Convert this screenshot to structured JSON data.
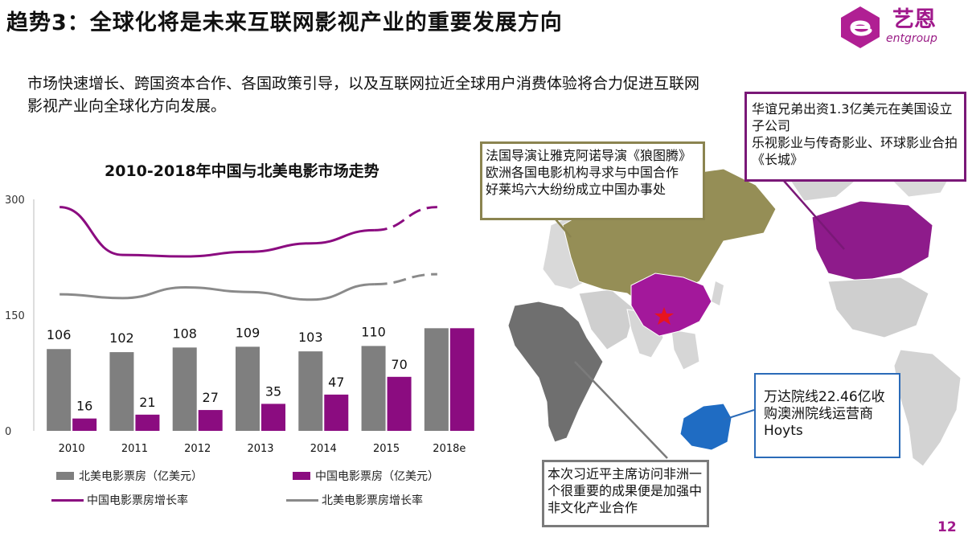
{
  "title": "趋势3：全球化将是未来互联网影视产业的重要发展方向",
  "logo": {
    "name": "艺恩",
    "sub": "entgroup"
  },
  "intro": "市场快速增长、跨国资本合作、各国政策引导，以及互联网拉近全球用户消费体验将合力促进互联网影视产业向全球化方向发展。",
  "chart_data": {
    "type": "bar",
    "title": "2010-2018年中国与北美电影市场走势",
    "categories": [
      "2010",
      "2011",
      "2012",
      "2013",
      "2014",
      "2015",
      "2018e"
    ],
    "yticks": [
      "300",
      "150",
      "0"
    ],
    "ylim": [
      0,
      300
    ],
    "series": [
      {
        "name": "北美电影票房（亿美元）",
        "kind": "bar",
        "color": "#7f7f7f",
        "values": [
          106,
          102,
          108,
          109,
          103,
          110,
          133
        ],
        "labels": [
          "106",
          "102",
          "108",
          "109",
          "103",
          "110",
          ""
        ]
      },
      {
        "name": "中国电影票房（亿美元）",
        "kind": "bar",
        "color": "#8b0c80",
        "values": [
          16,
          21,
          27,
          35,
          47,
          70,
          133
        ],
        "labels": [
          "16",
          "21",
          "27",
          "35",
          "47",
          "70",
          ""
        ]
      },
      {
        "name": "中国电影票房增长率",
        "kind": "line",
        "color": "#8b0c80",
        "values": [
          290,
          228,
          226,
          232,
          243,
          260,
          290
        ],
        "dashed_from": 5
      },
      {
        "name": "北美电影票房增长率",
        "kind": "line",
        "color": "#8a8a8a",
        "values": [
          177,
          172,
          186,
          180,
          170,
          190,
          203
        ],
        "dashed_from": 5
      }
    ],
    "legend": "bottom"
  },
  "callouts": {
    "olive": [
      "法国导演让雅克阿诺导演《狼图腾》",
      "欧洲各国电影机构寻求与中国合作",
      "好莱坞六大纷纷成立中国办事处"
    ],
    "purple": [
      "华谊兄弟出资1.3亿美元在美国设立子公司",
      "乐视影业与传奇影业、环球影业合拍《长城》"
    ],
    "blue": [
      "万达院线22.46亿收购澳洲院线运营商Hoyts"
    ],
    "gray": [
      "本次习近平主席访问非洲一个很重要的成果便是加强中非文化产业合作"
    ]
  },
  "colors": {
    "accent": "#a0198c",
    "olive": "#8b8450",
    "purple": "#7a1877",
    "blue": "#2b6bb8",
    "gray": "#7b7b7b"
  },
  "page_number": "12"
}
